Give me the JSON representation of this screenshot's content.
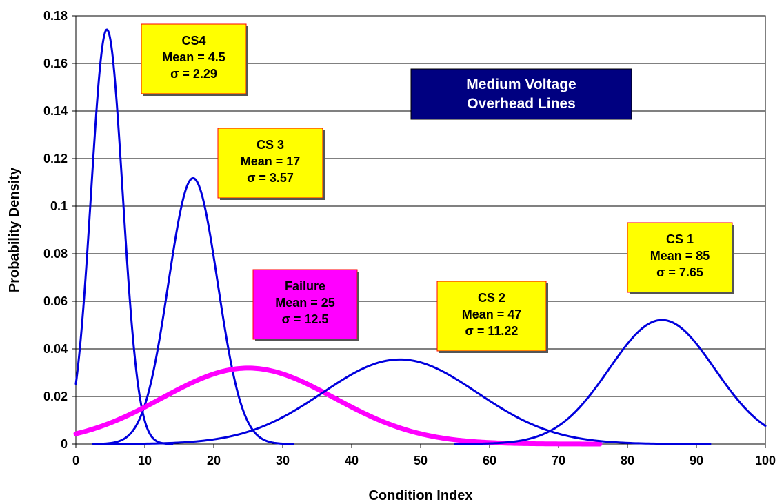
{
  "chart_data": {
    "type": "line",
    "title": "Medium Voltage Overhead Lines",
    "title_lines": [
      "Medium Voltage",
      "Overhead Lines"
    ],
    "xlabel": "Condition Index",
    "ylabel": "Probability Density",
    "xlim": [
      0,
      100
    ],
    "ylim": [
      0,
      0.18
    ],
    "xticks": [
      "0",
      "10",
      "20",
      "30",
      "40",
      "50",
      "60",
      "70",
      "80",
      "90",
      "100"
    ],
    "yticks": [
      "0",
      "0.02",
      "0.04",
      "0.06",
      "0.08",
      "0.1",
      "0.12",
      "0.14",
      "0.16",
      "0.18"
    ],
    "grid": "horizontal",
    "legend": "none",
    "colors": {
      "cs": "#0000dd",
      "failure": "#ff00ff",
      "label_bg": "#ffff00",
      "label_border": "#ff0000",
      "title_bg": "#000080",
      "title_text": "#ffffff"
    },
    "series": [
      {
        "name": "CS4",
        "distribution": "normal",
        "mean": 4.5,
        "sigma": 2.29,
        "x_range": [
          0,
          14
        ],
        "color": "#0000dd",
        "label_lines": [
          "CS4",
          "Mean = 4.5",
          "σ = 2.29"
        ]
      },
      {
        "name": "CS 3",
        "distribution": "normal",
        "mean": 17,
        "sigma": 3.57,
        "x_range": [
          3,
          31.5
        ],
        "color": "#0000dd",
        "label_lines": [
          "CS 3",
          "Mean = 17",
          "σ = 3.57"
        ]
      },
      {
        "name": "Failure",
        "distribution": "normal",
        "mean": 25,
        "sigma": 12.5,
        "x_range": [
          0,
          76
        ],
        "color": "#ff00ff",
        "label_lines": [
          "Failure",
          "Mean = 25",
          "σ = 12.5"
        ]
      },
      {
        "name": "CS 2",
        "distribution": "normal",
        "mean": 47,
        "sigma": 11.22,
        "x_range": [
          2.5,
          92
        ],
        "color": "#0000dd",
        "label_lines": [
          "CS 2",
          "Mean = 47",
          "σ = 11.22"
        ]
      },
      {
        "name": "CS 1",
        "distribution": "normal",
        "mean": 85,
        "sigma": 7.65,
        "x_range": [
          55,
          100
        ],
        "color": "#0000dd",
        "label_lines": [
          "CS 1",
          "Mean = 85",
          "σ = 7.65"
        ]
      }
    ]
  }
}
